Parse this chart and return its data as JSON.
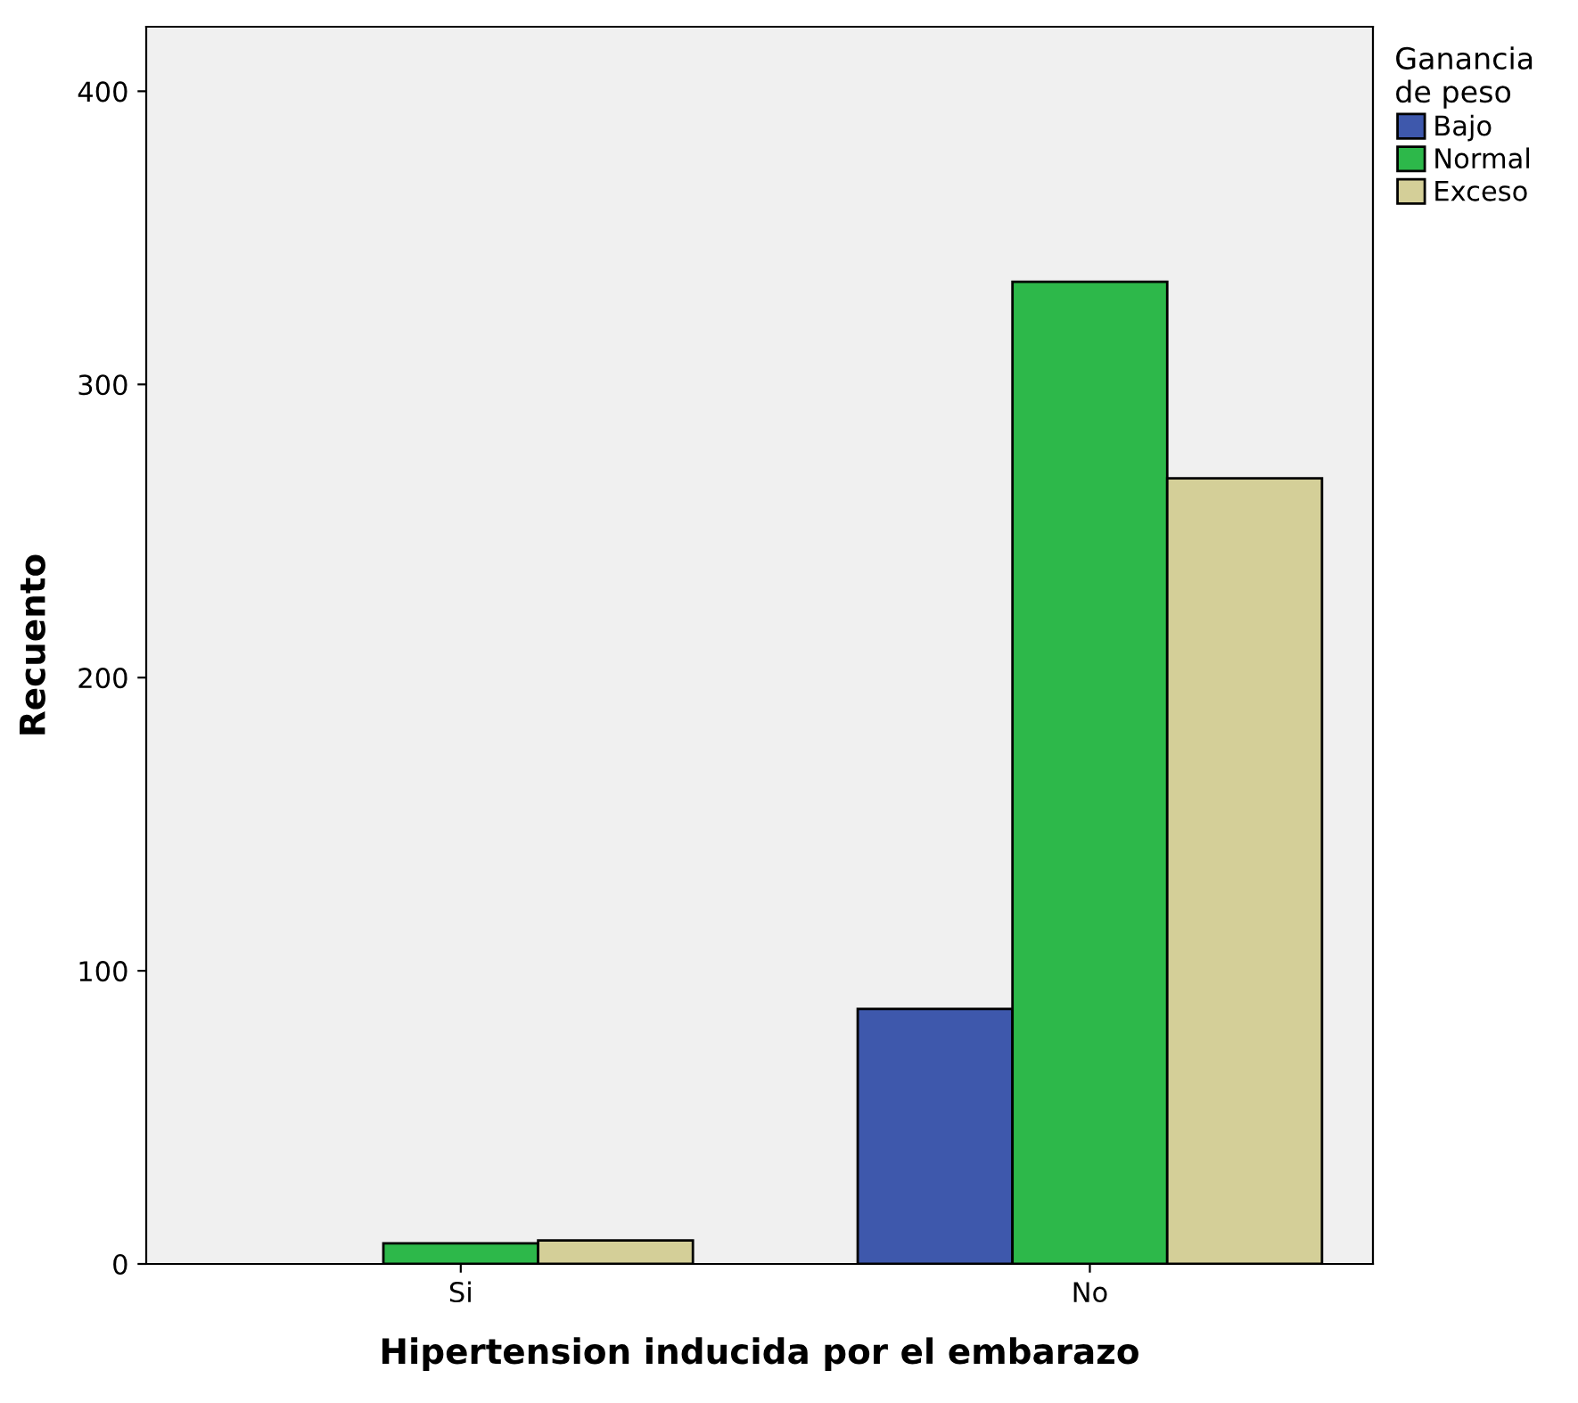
{
  "chart_data": {
    "type": "bar",
    "xlabel": "Hipertension inducida por el embarazo",
    "ylabel": "Recuento",
    "legend_title": "Ganancia\nde peso",
    "categories": [
      "Si",
      "No"
    ],
    "series": [
      {
        "name": "Bajo",
        "color": "#3e58ac",
        "values": [
          null,
          87
        ]
      },
      {
        "name": "Normal",
        "color": "#2db84a",
        "values": [
          7,
          335
        ]
      },
      {
        "name": "Exceso",
        "color": "#d4cf98",
        "values": [
          8,
          268
        ]
      }
    ],
    "ylim": [
      0,
      422
    ],
    "yticks": [
      0,
      100,
      200,
      300,
      400
    ],
    "grid": false,
    "legend": "top right"
  }
}
